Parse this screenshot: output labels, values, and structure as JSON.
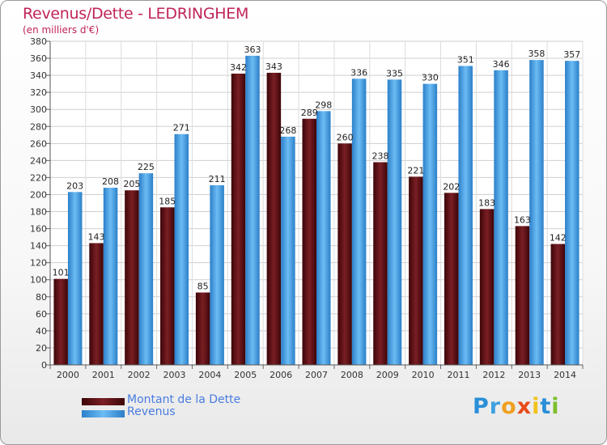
{
  "title": "Revenus/Dette - LEDRINGHEM",
  "subtitle": "(en milliers d'€)",
  "logo_text": "Proxiti",
  "colors": {
    "debt": "#7a1f24",
    "revenue": "#4aa3e6",
    "title": "#c0245a",
    "legend_text": "#4a7ce0"
  },
  "legend": [
    {
      "label": "Montant de la Dette",
      "color": "#6a1418"
    },
    {
      "label": "Revenus",
      "color": "#4aa3e6"
    }
  ],
  "chart_data": {
    "type": "bar",
    "title": "Revenus/Dette - LEDRINGHEM",
    "subtitle": "(en milliers d'€)",
    "categories": [
      "2000",
      "2001",
      "2002",
      "2003",
      "2004",
      "2005",
      "2006",
      "2007",
      "2008",
      "2009",
      "2010",
      "2011",
      "2012",
      "2013",
      "2014"
    ],
    "series": [
      {
        "name": "Montant de la Dette",
        "values": [
          101,
          143,
          205,
          185,
          85,
          342,
          343,
          289,
          260,
          238,
          221,
          202,
          183,
          163,
          142
        ]
      },
      {
        "name": "Revenus",
        "values": [
          203,
          208,
          225,
          271,
          211,
          363,
          268,
          298,
          336,
          335,
          330,
          351,
          346,
          358,
          357
        ]
      }
    ],
    "ylim": [
      0,
      380
    ],
    "ytick_step": 20,
    "grid": true,
    "legend_position": "bottom-left"
  }
}
